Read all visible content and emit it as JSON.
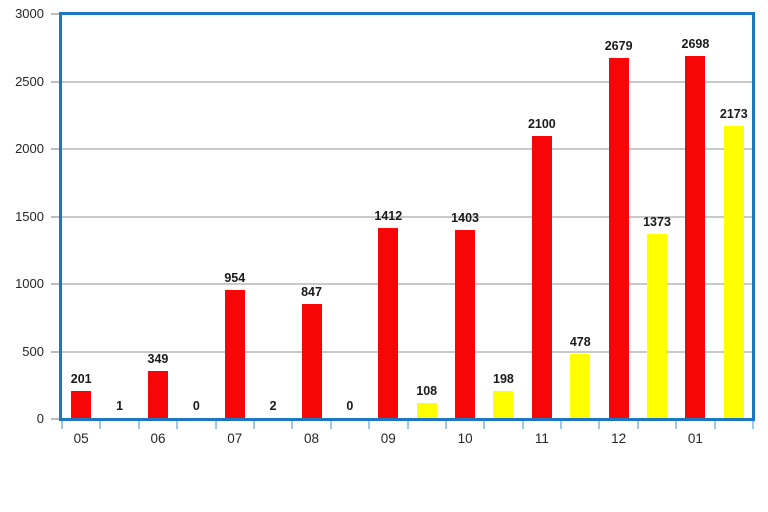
{
  "chart_data": {
    "type": "bar",
    "title": "",
    "xlabel": "",
    "ylabel": "",
    "categories": [
      "05",
      "06",
      "07",
      "08",
      "09",
      "10",
      "11",
      "12",
      "01"
    ],
    "series": [
      {
        "name": "red-series",
        "color": "#f60606",
        "values": [
          201,
          349,
          954,
          847,
          1412,
          1403,
          2100,
          2679,
          2698
        ]
      },
      {
        "name": "yellow-series",
        "color": "#ffff00",
        "values": [
          1,
          0,
          2,
          0,
          108,
          198,
          478,
          1373,
          2173
        ]
      }
    ],
    "ylim": [
      0,
      3000
    ],
    "y_tick_step": 500,
    "y_tick_labels": [
      "0",
      "500",
      "1000",
      "1500",
      "2000",
      "2500",
      "3000"
    ],
    "grid": true,
    "legend": "none",
    "colors": {
      "frame": "#1c76c2",
      "gridline": "#c9c9c9",
      "y_tick": "#bdbdbd",
      "x_tick": "#9ec7e8",
      "axis_text": "#262626",
      "value_text": "#1a1a1a",
      "background": "#ffffff"
    }
  }
}
